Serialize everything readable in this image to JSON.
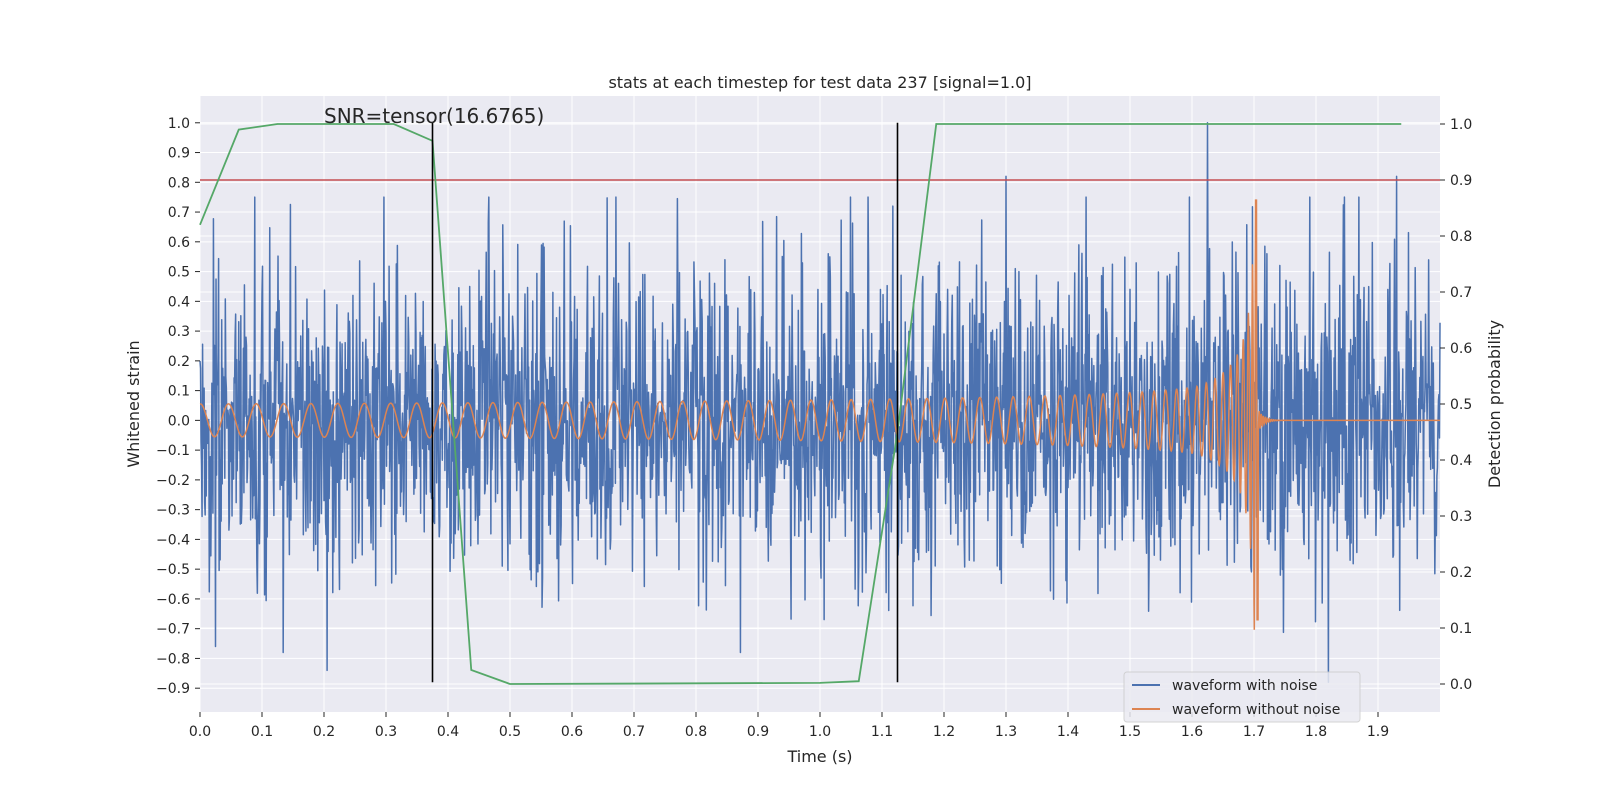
{
  "chart_data": {
    "type": "line",
    "title": "stats at each timestep for test data 237 [signal=1.0]",
    "xlabel": "Time (s)",
    "ylabel": "Whitened strain",
    "y2label": "Detection probability",
    "xlim": [
      0.0,
      2.0
    ],
    "ylim": [
      -0.98,
      1.09
    ],
    "y2lim": [
      -0.05,
      1.05
    ],
    "xticks": [
      0.0,
      0.1,
      0.2,
      0.3,
      0.4,
      0.5,
      0.6,
      0.7,
      0.8,
      0.9,
      1.0,
      1.1,
      1.2,
      1.3,
      1.4,
      1.5,
      1.6,
      1.7,
      1.8,
      1.9
    ],
    "yticks": [
      -0.9,
      -0.8,
      -0.7,
      -0.6,
      -0.5,
      -0.4,
      -0.3,
      -0.2,
      -0.1,
      0.0,
      0.1,
      0.2,
      0.3,
      0.4,
      0.5,
      0.6,
      0.7,
      0.8,
      0.9,
      1.0
    ],
    "y2ticks": [
      0.0,
      0.1,
      0.2,
      0.3,
      0.4,
      0.5,
      0.6,
      0.7,
      0.8,
      0.9,
      1.0
    ],
    "annotation": "SNR=tensor(16.6765)",
    "annotation_at": {
      "x": 0.2,
      "y": 1.0
    },
    "threshold": {
      "axis": "y2",
      "value": 0.9,
      "color": "#c44e52"
    },
    "vlines": [
      {
        "x": 0.375,
        "y_from": -0.88,
        "y_to": 1.0,
        "color": "#000000"
      },
      {
        "x": 1.125,
        "y_from": -0.88,
        "y_to": 1.0,
        "color": "#000000"
      }
    ],
    "series": [
      {
        "name": "waveform with noise",
        "axis": "y",
        "color": "#4c72b0",
        "kind": "noise",
        "x_range": [
          0.0,
          2.0
        ],
        "amplitude_range": [
          -0.85,
          1.0
        ],
        "peaks": [
          {
            "x": 1.625,
            "y": 1.0
          },
          {
            "x": 1.3,
            "y": 0.82
          },
          {
            "x": 1.93,
            "y": 0.82
          },
          {
            "x": 1.82,
            "y": -0.88
          },
          {
            "x": 0.205,
            "y": -0.84
          },
          {
            "x": 0.025,
            "y": -0.76
          }
        ]
      },
      {
        "name": "waveform without noise",
        "axis": "y",
        "color": "#dd8452",
        "kind": "chirp",
        "x_range": [
          0.0,
          2.0
        ],
        "merger_time": 1.705,
        "base_amplitude": 0.055,
        "peak_amplitude": 0.74,
        "min_amplitude": -0.67,
        "base_frequency_hz": 22
      },
      {
        "name": "detection probability",
        "axis": "y2",
        "color": "#55a868",
        "show_in_legend": false,
        "x": [
          0.0,
          0.0625,
          0.125,
          0.1875,
          0.25,
          0.3125,
          0.375,
          0.4375,
          0.5,
          1.0,
          1.0625,
          1.125,
          1.1875,
          1.25,
          1.9375
        ],
        "y": [
          0.82,
          0.99,
          1.0,
          1.0,
          1.0,
          1.0,
          0.97,
          0.025,
          0.0,
          0.002,
          0.005,
          0.45,
          1.0,
          1.0,
          1.0
        ]
      }
    ],
    "legend": {
      "position": "lower-right",
      "entries": [
        "waveform with noise",
        "waveform without noise"
      ]
    },
    "grid": true
  }
}
